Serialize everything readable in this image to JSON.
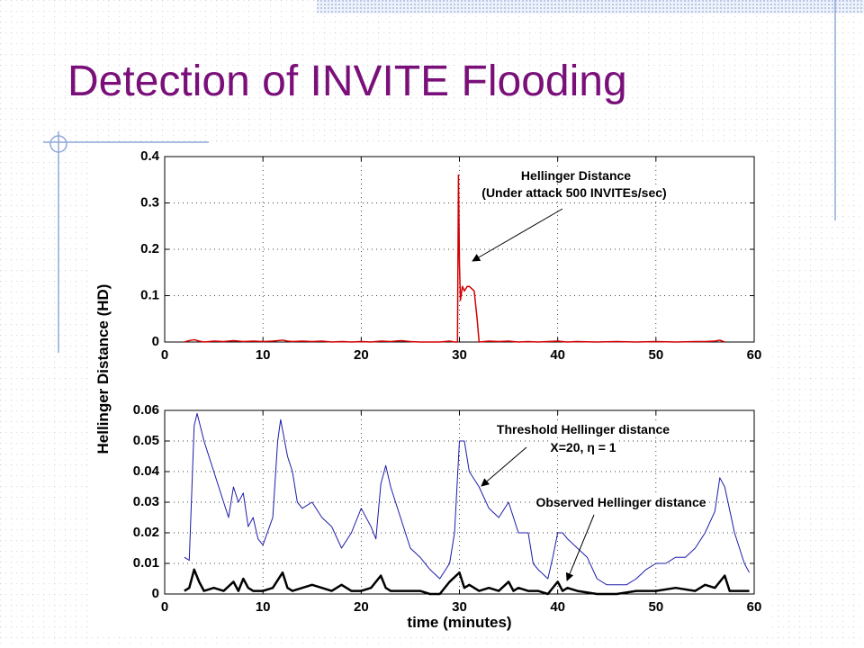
{
  "title": "Detection of INVITE Flooding",
  "chart_data": [
    {
      "type": "line",
      "ylabel": "Hellinger Distance (HD)",
      "annotations": [
        "Hellinger Distance",
        "(Under attack 500 INVITEs/sec)"
      ],
      "xlim": [
        0,
        60
      ],
      "xticks": [
        0,
        10,
        20,
        30,
        40,
        50,
        60
      ],
      "ylim": [
        0,
        0.4
      ],
      "yticks": [
        0,
        0.1,
        0.2,
        0.3,
        0.4
      ],
      "grid": true,
      "series": [
        {
          "color": "#d40000",
          "x": [
            2,
            2.5,
            3,
            3.5,
            4,
            5,
            6,
            7,
            8,
            9,
            10,
            11,
            12,
            12.5,
            13,
            14,
            15,
            16,
            17,
            18,
            19,
            20,
            21,
            22,
            23,
            24,
            25,
            26,
            27,
            28,
            29,
            29.5,
            29.8,
            29.9,
            30,
            30.1,
            30.3,
            30.5,
            30.8,
            31,
            31.5,
            31.8,
            32,
            32.5,
            33,
            34,
            35,
            36,
            37,
            38,
            39,
            40,
            41,
            42,
            44,
            46,
            48,
            50,
            52,
            54,
            55,
            56,
            56.5,
            57
          ],
          "values": [
            0,
            0.003,
            0.005,
            0.002,
            0,
            0.002,
            0.001,
            0.003,
            0.001,
            0.002,
            0.001,
            0.002,
            0.004,
            0.002,
            0.001,
            0.002,
            0.001,
            0.002,
            0,
            0.001,
            0,
            0.001,
            0,
            0.002,
            0.001,
            0.003,
            0.001,
            0,
            0,
            0,
            0.002,
            0,
            0,
            0.36,
            0.17,
            0.09,
            0.12,
            0.11,
            0.12,
            0.12,
            0.11,
            0.05,
            0,
            0.001,
            0.002,
            0.001,
            0.002,
            0,
            0.001,
            0,
            0.001,
            0.002,
            0,
            0.001,
            0,
            0.001,
            0,
            0.001,
            0,
            0.001,
            0.001,
            0.002,
            0.004,
            0
          ]
        }
      ]
    },
    {
      "type": "line",
      "xlabel": "time (minutes)",
      "annotations": [
        "Threshold Hellinger distance",
        "X=20, η = 1",
        "Observed Hellinger distance"
      ],
      "xlim": [
        0,
        60
      ],
      "xticks": [
        0,
        10,
        20,
        30,
        40,
        50,
        60
      ],
      "ylim": [
        0,
        0.06
      ],
      "yticks": [
        0,
        0.01,
        0.02,
        0.03,
        0.04,
        0.05,
        0.06
      ],
      "grid": true,
      "series": [
        {
          "color": "#1c1ca8",
          "width": 1,
          "x": [
            2,
            2.5,
            3,
            3.3,
            4,
            5,
            6,
            6.5,
            7,
            7.5,
            8,
            8.5,
            9,
            9.5,
            10,
            11,
            11.5,
            11.8,
            12.5,
            13,
            13.5,
            14,
            15,
            16,
            17,
            18,
            19,
            20,
            21,
            21.5,
            22,
            22.5,
            23,
            24,
            25,
            26,
            27,
            28,
            29,
            29.5,
            30,
            30.5,
            31,
            32,
            33,
            34,
            35,
            36,
            37,
            37.5,
            38,
            39,
            39.5,
            40,
            40.5,
            41,
            42,
            43,
            44,
            45,
            46,
            47,
            48,
            49,
            50,
            51,
            52,
            53,
            54,
            55,
            56,
            56.5,
            57,
            58,
            59,
            59.5
          ],
          "values": [
            0.012,
            0.011,
            0.055,
            0.059,
            0.05,
            0.04,
            0.03,
            0.025,
            0.035,
            0.03,
            0.033,
            0.022,
            0.025,
            0.018,
            0.016,
            0.025,
            0.05,
            0.057,
            0.045,
            0.04,
            0.03,
            0.028,
            0.03,
            0.025,
            0.022,
            0.015,
            0.02,
            0.028,
            0.022,
            0.018,
            0.036,
            0.042,
            0.035,
            0.025,
            0.015,
            0.012,
            0.008,
            0.005,
            0.01,
            0.02,
            0.05,
            0.05,
            0.04,
            0.035,
            0.028,
            0.025,
            0.03,
            0.02,
            0.02,
            0.01,
            0.008,
            0.005,
            0.012,
            0.02,
            0.02,
            0.018,
            0.015,
            0.012,
            0.005,
            0.003,
            0.003,
            0.003,
            0.005,
            0.008,
            0.01,
            0.01,
            0.012,
            0.012,
            0.015,
            0.02,
            0.027,
            0.038,
            0.035,
            0.02,
            0.01,
            0.007
          ]
        },
        {
          "color": "#000000",
          "width": 2.5,
          "x": [
            2,
            2.5,
            3,
            3.5,
            4,
            5,
            6,
            7,
            7.5,
            8,
            8.5,
            9,
            10,
            11,
            12,
            12.5,
            13,
            14,
            15,
            16,
            17,
            18,
            19,
            20,
            21,
            22,
            22.5,
            23,
            24,
            25,
            26,
            27,
            28,
            29,
            30,
            30.5,
            31,
            32,
            33,
            34,
            35,
            35.5,
            36,
            37,
            38,
            39,
            40,
            40.5,
            41,
            42,
            44,
            46,
            48,
            50,
            52,
            54,
            55,
            56,
            57,
            57.5,
            58,
            59.5
          ],
          "values": [
            0.001,
            0.002,
            0.008,
            0.004,
            0.001,
            0.002,
            0.001,
            0.004,
            0.001,
            0.005,
            0.002,
            0.001,
            0.001,
            0.002,
            0.007,
            0.002,
            0.001,
            0.002,
            0.003,
            0.002,
            0.001,
            0.003,
            0.001,
            0.001,
            0.002,
            0.006,
            0.002,
            0.001,
            0.001,
            0.001,
            0.001,
            0,
            0,
            0.004,
            0.007,
            0.002,
            0.003,
            0.001,
            0.002,
            0.001,
            0.004,
            0.001,
            0.002,
            0.001,
            0.001,
            0,
            0.004,
            0.001,
            0.002,
            0.001,
            0,
            0,
            0.001,
            0.001,
            0.002,
            0.001,
            0.003,
            0.002,
            0.006,
            0.001,
            0.001,
            0.001
          ]
        }
      ]
    }
  ]
}
